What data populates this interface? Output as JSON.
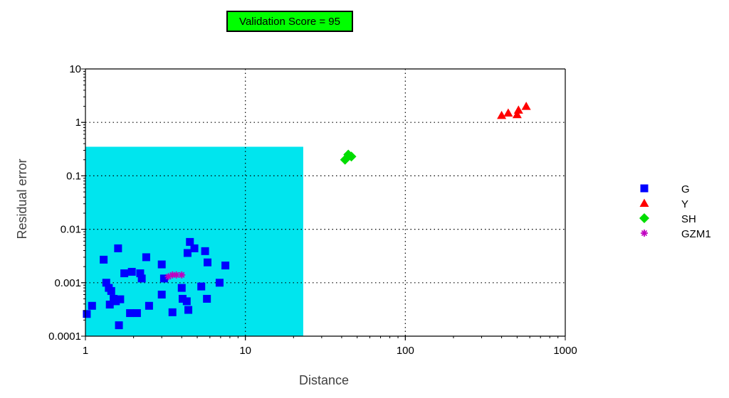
{
  "badge": {
    "text": "Validation Score = 95",
    "color": "#00ff00"
  },
  "chart_data": {
    "type": "scatter",
    "xlabel": "Distance",
    "ylabel": "Residual error",
    "xscale": "log",
    "yscale": "log",
    "xlim": [
      1,
      1000
    ],
    "ylim": [
      0.0001,
      10
    ],
    "x_ticks": [
      "1",
      "10",
      "100",
      "1000"
    ],
    "y_ticks": [
      "0.0001",
      "0.001",
      "0.01",
      "0.1",
      "1",
      "10"
    ],
    "grid": "dotted",
    "legend_position": "right",
    "highlight_region": {
      "x": [
        1,
        23
      ],
      "y": [
        0.0001,
        0.35
      ],
      "color": "#00e5ee"
    },
    "series": [
      {
        "name": "G",
        "marker": "square",
        "color": "#0000ff",
        "points": [
          [
            1.02,
            0.00026
          ],
          [
            1.1,
            0.00037
          ],
          [
            1.3,
            0.0027
          ],
          [
            1.35,
            0.001
          ],
          [
            1.4,
            0.0008
          ],
          [
            1.45,
            0.0007
          ],
          [
            1.42,
            0.00039
          ],
          [
            1.5,
            0.0005
          ],
          [
            1.55,
            0.00045
          ],
          [
            1.6,
            0.0044
          ],
          [
            1.62,
            0.00016
          ],
          [
            1.65,
            0.00049
          ],
          [
            1.75,
            0.0015
          ],
          [
            1.9,
            0.00027
          ],
          [
            1.95,
            0.0016
          ],
          [
            2.1,
            0.00027
          ],
          [
            2.2,
            0.0015
          ],
          [
            2.25,
            0.0012
          ],
          [
            2.4,
            0.003
          ],
          [
            2.5,
            0.00037
          ],
          [
            3.0,
            0.0022
          ],
          [
            3.0,
            0.0006
          ],
          [
            3.1,
            0.0012
          ],
          [
            3.5,
            0.00028
          ],
          [
            4.0,
            0.0008
          ],
          [
            4.05,
            0.0005
          ],
          [
            4.3,
            0.00045
          ],
          [
            4.35,
            0.0036
          ],
          [
            4.4,
            0.00031
          ],
          [
            4.5,
            0.0058
          ],
          [
            4.8,
            0.0044
          ],
          [
            5.3,
            0.00085
          ],
          [
            5.6,
            0.0039
          ],
          [
            5.8,
            0.0024
          ],
          [
            5.75,
            0.0005
          ],
          [
            6.9,
            0.001
          ],
          [
            7.5,
            0.0021
          ]
        ]
      },
      {
        "name": "Y",
        "marker": "triangle",
        "color": "#ff0000",
        "points": [
          [
            400,
            1.35
          ],
          [
            440,
            1.5
          ],
          [
            500,
            1.4
          ],
          [
            510,
            1.7
          ],
          [
            570,
            2.0
          ]
        ]
      },
      {
        "name": "SH",
        "marker": "diamond",
        "color": "#00dd00",
        "points": [
          [
            42,
            0.2
          ],
          [
            44,
            0.25
          ],
          [
            46,
            0.23
          ]
        ]
      },
      {
        "name": "GZM1",
        "marker": "star",
        "color": "#c000c0",
        "points": [
          [
            3.3,
            0.0013
          ],
          [
            3.5,
            0.0014
          ],
          [
            3.7,
            0.0014
          ],
          [
            4.0,
            0.0014
          ]
        ]
      }
    ]
  }
}
